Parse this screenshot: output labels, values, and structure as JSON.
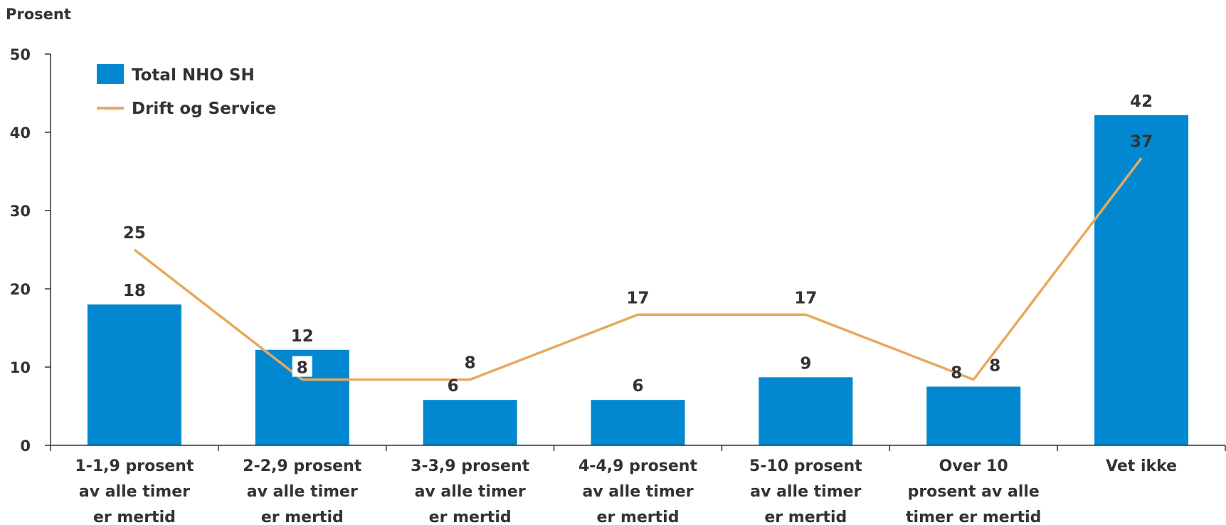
{
  "chart_data": {
    "type": "bar",
    "ylabel": "Prosent",
    "ylim": [
      0,
      50
    ],
    "yticks": [
      "0",
      "10",
      "20",
      "30",
      "40",
      "50"
    ],
    "categories": [
      [
        "1-1,9 prosent",
        "av alle timer",
        "er mertid"
      ],
      [
        "2-2,9 prosent",
        "av alle timer",
        "er mertid"
      ],
      [
        "3-3,9 prosent",
        "av alle timer",
        "er mertid"
      ],
      [
        "4-4,9 prosent",
        "av alle timer",
        "er mertid"
      ],
      [
        "5-10 prosent",
        "av alle timer",
        "er mertid"
      ],
      [
        "Over 10",
        "prosent av alle",
        "timer er mertid"
      ],
      [
        "Vet ikke"
      ]
    ],
    "series": [
      {
        "name": "Total NHO SH",
        "kind": "bar",
        "color": "#0288D1",
        "values": [
          18,
          12.2,
          5.8,
          5.8,
          8.7,
          7.5,
          42.2
        ],
        "labels": [
          "18",
          "12",
          "6",
          "6",
          "9",
          "8",
          "42"
        ]
      },
      {
        "name": "Drift og Service",
        "kind": "line",
        "color": "#E8A95C",
        "values": [
          25,
          8.4,
          8.4,
          16.7,
          16.7,
          8.4,
          36.7
        ],
        "labels": [
          "25",
          "8",
          "8",
          "17",
          "17",
          "8",
          "37"
        ]
      }
    ],
    "grid": false,
    "legend": "top-left"
  }
}
